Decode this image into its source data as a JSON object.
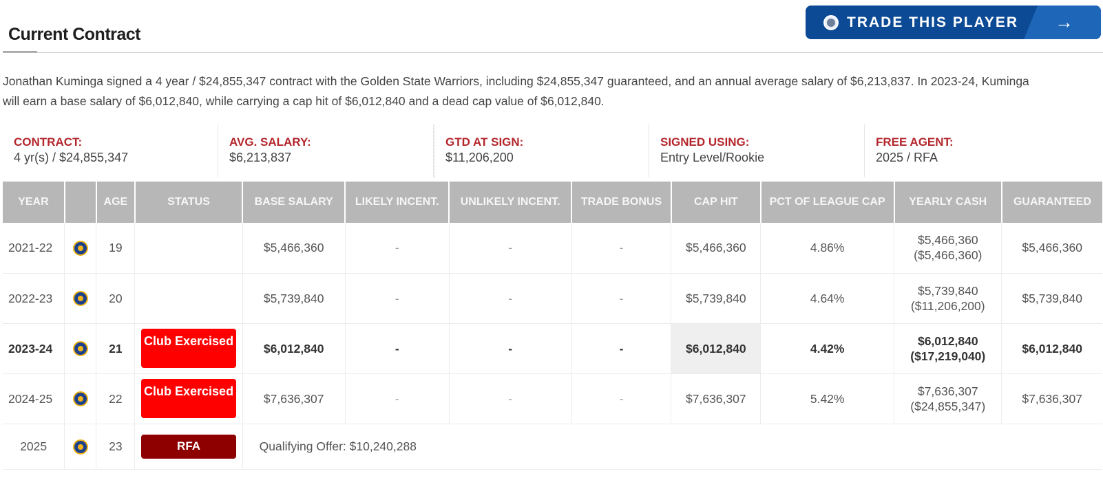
{
  "header": {
    "title": "Current Contract",
    "trade_button": "TRADE THIS PLAYER",
    "trade_arrow": "→"
  },
  "description": "Jonathan Kuminga signed a 4 year / $24,855,347 contract with the Golden State Warriors, including $24,855,347 guaranteed, and an annual average salary of $6,213,837. In 2023-24, Kuminga will earn a base salary of $6,012,840, while carrying a cap hit of $6,012,840 and a dead cap value of $6,012,840.",
  "summary": [
    {
      "label": "CONTRACT:",
      "value": "4 yr(s) / $24,855,347"
    },
    {
      "label": "AVG. SALARY:",
      "value": "$6,213,837"
    },
    {
      "label": "GTD AT SIGN:",
      "value": "$11,206,200"
    },
    {
      "label": "SIGNED USING:",
      "value": "Entry Level/Rookie"
    },
    {
      "label": "FREE AGENT:",
      "value": "2025 / RFA"
    }
  ],
  "table": {
    "headers": [
      "YEAR",
      "",
      "AGE",
      "STATUS",
      "BASE SALARY",
      "LIKELY INCENT.",
      "UNLIKELY INCENT.",
      "TRADE BONUS",
      "CAP HIT",
      "PCT OF LEAGUE CAP",
      "YEARLY CASH",
      "GUARANTEED"
    ],
    "rows": [
      {
        "year": "2021-22",
        "age": "19",
        "status": "",
        "base": "$5,466,360",
        "likely": "-",
        "unlikely": "-",
        "trade": "-",
        "cap": "$5,466,360",
        "pct": "4.86%",
        "cash": "$5,466,360",
        "cash_cum": "($5,466,360)",
        "gtd": "$5,466,360"
      },
      {
        "year": "2022-23",
        "age": "20",
        "status": "",
        "base": "$5,739,840",
        "likely": "-",
        "unlikely": "-",
        "trade": "-",
        "cap": "$5,739,840",
        "pct": "4.64%",
        "cash": "$5,739,840",
        "cash_cum": "($11,206,200)",
        "gtd": "$5,739,840"
      },
      {
        "year": "2023-24",
        "age": "21",
        "status": "Club Exercised",
        "base": "$6,012,840",
        "likely": "-",
        "unlikely": "-",
        "trade": "-",
        "cap": "$6,012,840",
        "pct": "4.42%",
        "cash": "$6,012,840",
        "cash_cum": "($17,219,040)",
        "gtd": "$6,012,840"
      },
      {
        "year": "2024-25",
        "age": "22",
        "status": "Club Exercised",
        "base": "$7,636,307",
        "likely": "-",
        "unlikely": "-",
        "trade": "-",
        "cap": "$7,636,307",
        "pct": "5.42%",
        "cash": "$7,636,307",
        "cash_cum": "($24,855,347)",
        "gtd": "$7,636,307"
      }
    ],
    "fa_row": {
      "year": "2025",
      "age": "23",
      "status": "RFA",
      "note": "Qualifying Offer: $10,240,288"
    }
  },
  "colors": {
    "accent_red": "#b3262c",
    "button_blue": "#0c4a96",
    "status_red": "#fe0000",
    "rfa_red": "#8e0000"
  },
  "icons": {
    "trade_button": "basketball-icon",
    "team": "warriors-logo-icon"
  }
}
